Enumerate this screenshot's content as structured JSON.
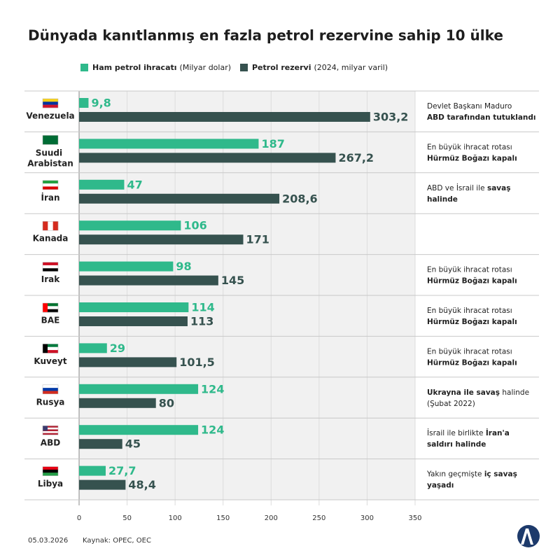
{
  "chart_data": {
    "type": "bar",
    "orientation": "horizontal",
    "title": "Dünyada kanıtlanmış en fazla petrol rezervine sahip 10 ülke",
    "categories": [
      "Venezuela",
      "Suudi Arabistan",
      "İran",
      "Kanada",
      "Irak",
      "BAE",
      "Kuveyt",
      "Rusya",
      "ABD",
      "Libya"
    ],
    "series": [
      {
        "name": "Ham petrol ihracatı",
        "note": "(Milyar dolar)",
        "color": "#2fb98b",
        "values": [
          9.8,
          187,
          47,
          106,
          98,
          114,
          29,
          124,
          124,
          27.7
        ],
        "value_labels": [
          "9,8",
          "187",
          "47",
          "106",
          "98",
          "114",
          "29",
          "124",
          "124",
          "27,7"
        ]
      },
      {
        "name": "Petrol rezervi",
        "note": "(2024, milyar varil)",
        "color": "#36524f",
        "values": [
          303.2,
          267.2,
          208.6,
          171,
          145,
          113,
          101.5,
          80,
          45,
          48.4
        ],
        "value_labels": [
          "303,2",
          "267,2",
          "208,6",
          "171",
          "145",
          "113",
          "101,5",
          "80",
          "45",
          "48,4"
        ]
      }
    ],
    "xlim": [
      0,
      350
    ],
    "xticks": [
      0,
      50,
      100,
      150,
      200,
      250,
      300,
      350
    ],
    "grid": true,
    "annotations": [
      [
        [
          {
            "text": "Devlet Başkanı Maduro",
            "bold": false
          }
        ],
        [
          {
            "text": "ABD tarafından tutuklandı",
            "bold": true
          }
        ]
      ],
      [
        [
          {
            "text": "En büyük ihracat rotası",
            "bold": false
          }
        ],
        [
          {
            "text": "Hürmüz Boğazı kapalı",
            "bold": true
          }
        ]
      ],
      [
        [
          {
            "text": "ABD ve İsrail ile ",
            "bold": false
          },
          {
            "text": "savaş",
            "bold": true
          }
        ],
        [
          {
            "text": "halinde",
            "bold": true
          }
        ]
      ],
      null,
      [
        [
          {
            "text": "En büyük ihracat rotası",
            "bold": false
          }
        ],
        [
          {
            "text": "Hürmüz Boğazı kapalı",
            "bold": true
          }
        ]
      ],
      [
        [
          {
            "text": "En büyük ihracat rotası",
            "bold": false
          }
        ],
        [
          {
            "text": "Hürmüz Boğazı kapalı",
            "bold": true
          }
        ]
      ],
      [
        [
          {
            "text": "En büyük ihracat rotası",
            "bold": false
          }
        ],
        [
          {
            "text": "Hürmüz Boğazı kapalı",
            "bold": true
          }
        ]
      ],
      [
        [
          {
            "text": "Ukrayna ile savaş",
            "bold": true
          },
          {
            "text": " halinde",
            "bold": false
          }
        ],
        [
          {
            "text": "(Şubat 2022)",
            "bold": false
          }
        ]
      ],
      [
        [
          {
            "text": "İsrail ile birlikte ",
            "bold": false
          },
          {
            "text": "İran'a",
            "bold": true
          }
        ],
        [
          {
            "text": "saldırı halinde",
            "bold": true
          }
        ]
      ],
      [
        [
          {
            "text": "Yakın geçmişte ",
            "bold": false
          },
          {
            "text": "iç savaş",
            "bold": true
          }
        ],
        [
          {
            "text": "yaşadı",
            "bold": true
          }
        ]
      ]
    ],
    "date": "05.03.2026",
    "source": "Kaynak: OPEC, OEC"
  }
}
